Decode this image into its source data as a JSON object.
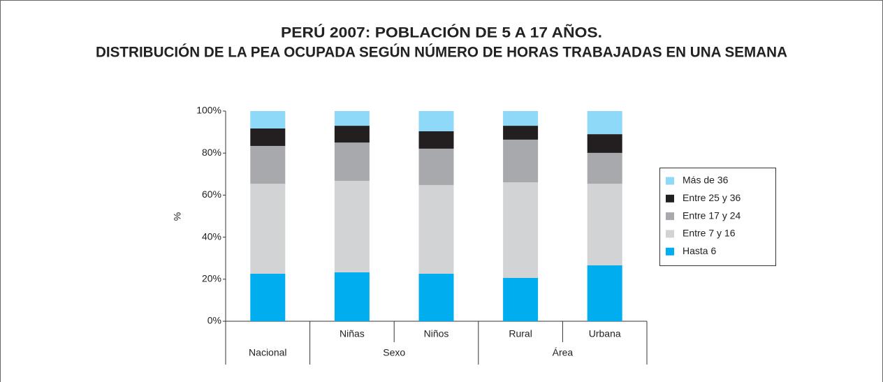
{
  "chart_data": {
    "type": "stacked_bar",
    "title": [
      "PERÚ 2007: POBLACIÓN DE 5 A 17 AÑOS.",
      "DISTRIBUCIÓN DE LA PEA OCUPADA SEGÚN NÚMERO DE HORAS TRABAJADAS EN UNA SEMANA"
    ],
    "ylabel": "%",
    "categories": [
      "Nacional",
      "Niñas",
      "Niños",
      "Rural",
      "Urbana"
    ],
    "x_groups": [
      {
        "label": "Sexo",
        "start": 1,
        "end": 2
      },
      {
        "label": "Área",
        "start": 3,
        "end": 4
      }
    ],
    "series": [
      {
        "name": "Hasta 6",
        "color": "#00adef",
        "values": [
          22.6,
          23.3,
          22.6,
          20.6,
          26.6
        ]
      },
      {
        "name": "Entre 7 y 16",
        "color": "#d1d3d4",
        "values": [
          42.8,
          43.5,
          42.2,
          45.5,
          38.8
        ]
      },
      {
        "name": "Entre 17 y 24",
        "color": "#a7a9ac",
        "values": [
          18.0,
          18.2,
          17.3,
          20.3,
          14.7
        ]
      },
      {
        "name": "Entre 25 y 36",
        "color": "#231f20",
        "values": [
          8.3,
          8.0,
          8.3,
          6.6,
          8.9
        ]
      },
      {
        "name": "Más de 36",
        "color": "#8ed8f8",
        "values": [
          8.3,
          7.0,
          9.6,
          7.0,
          11.0
        ]
      }
    ],
    "ylim": [
      0,
      100
    ],
    "yticks": [
      {
        "value": 0,
        "label": "0%"
      },
      {
        "value": 20,
        "label": "20%"
      },
      {
        "value": 40,
        "label": "40%"
      },
      {
        "value": 60,
        "label": "60%"
      },
      {
        "value": 80,
        "label": "80%"
      },
      {
        "value": 100,
        "label": "100%"
      }
    ],
    "legend": "right"
  }
}
